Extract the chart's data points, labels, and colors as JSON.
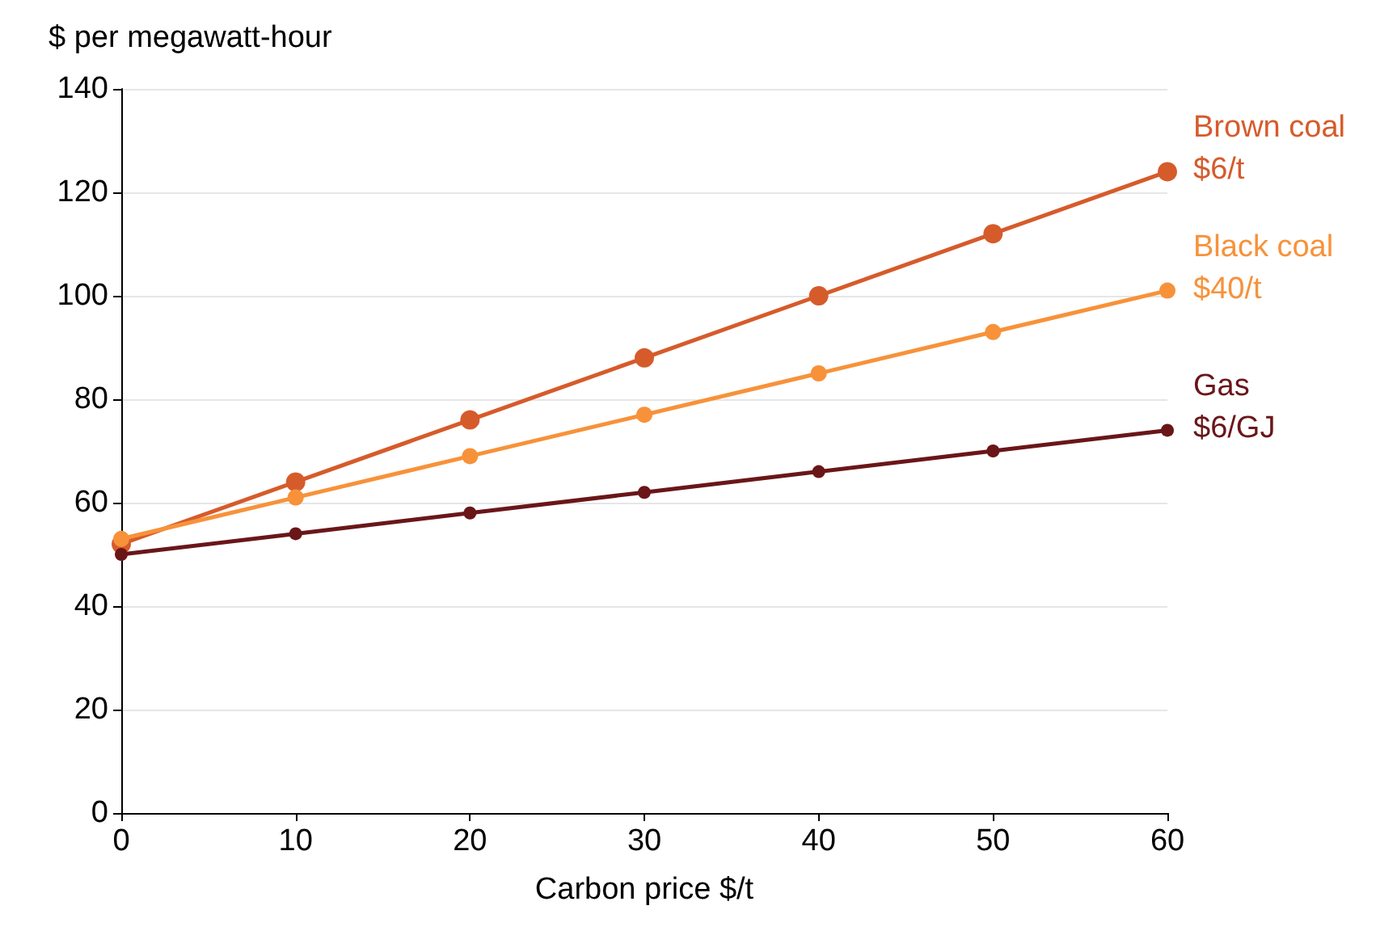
{
  "chart_data": {
    "type": "line",
    "xlabel": "Carbon price $/t",
    "ylabel": "$ per megawatt-hour",
    "x": [
      0,
      10,
      20,
      30,
      40,
      50,
      60
    ],
    "series": [
      {
        "name": "Brown coal\n$6/t",
        "color": "#d65b2b",
        "values": [
          52,
          64,
          76,
          88,
          100,
          112,
          124
        ]
      },
      {
        "name": "Black coal\n$40/t",
        "color": "#f7923a",
        "values": [
          53,
          61,
          69,
          77,
          85,
          93,
          101
        ]
      },
      {
        "name": "Gas\n$6/GJ",
        "color": "#6a1619",
        "values": [
          50,
          54,
          58,
          62,
          66,
          70,
          74
        ]
      }
    ],
    "xlim": [
      0,
      60
    ],
    "xticks": [
      0,
      10,
      20,
      30,
      40,
      50,
      60
    ],
    "ylim": [
      0,
      140
    ],
    "yticks": [
      0,
      20,
      40,
      60,
      80,
      100,
      120,
      140
    ],
    "grid": "y",
    "marker": "circle",
    "line_style": "solid"
  }
}
